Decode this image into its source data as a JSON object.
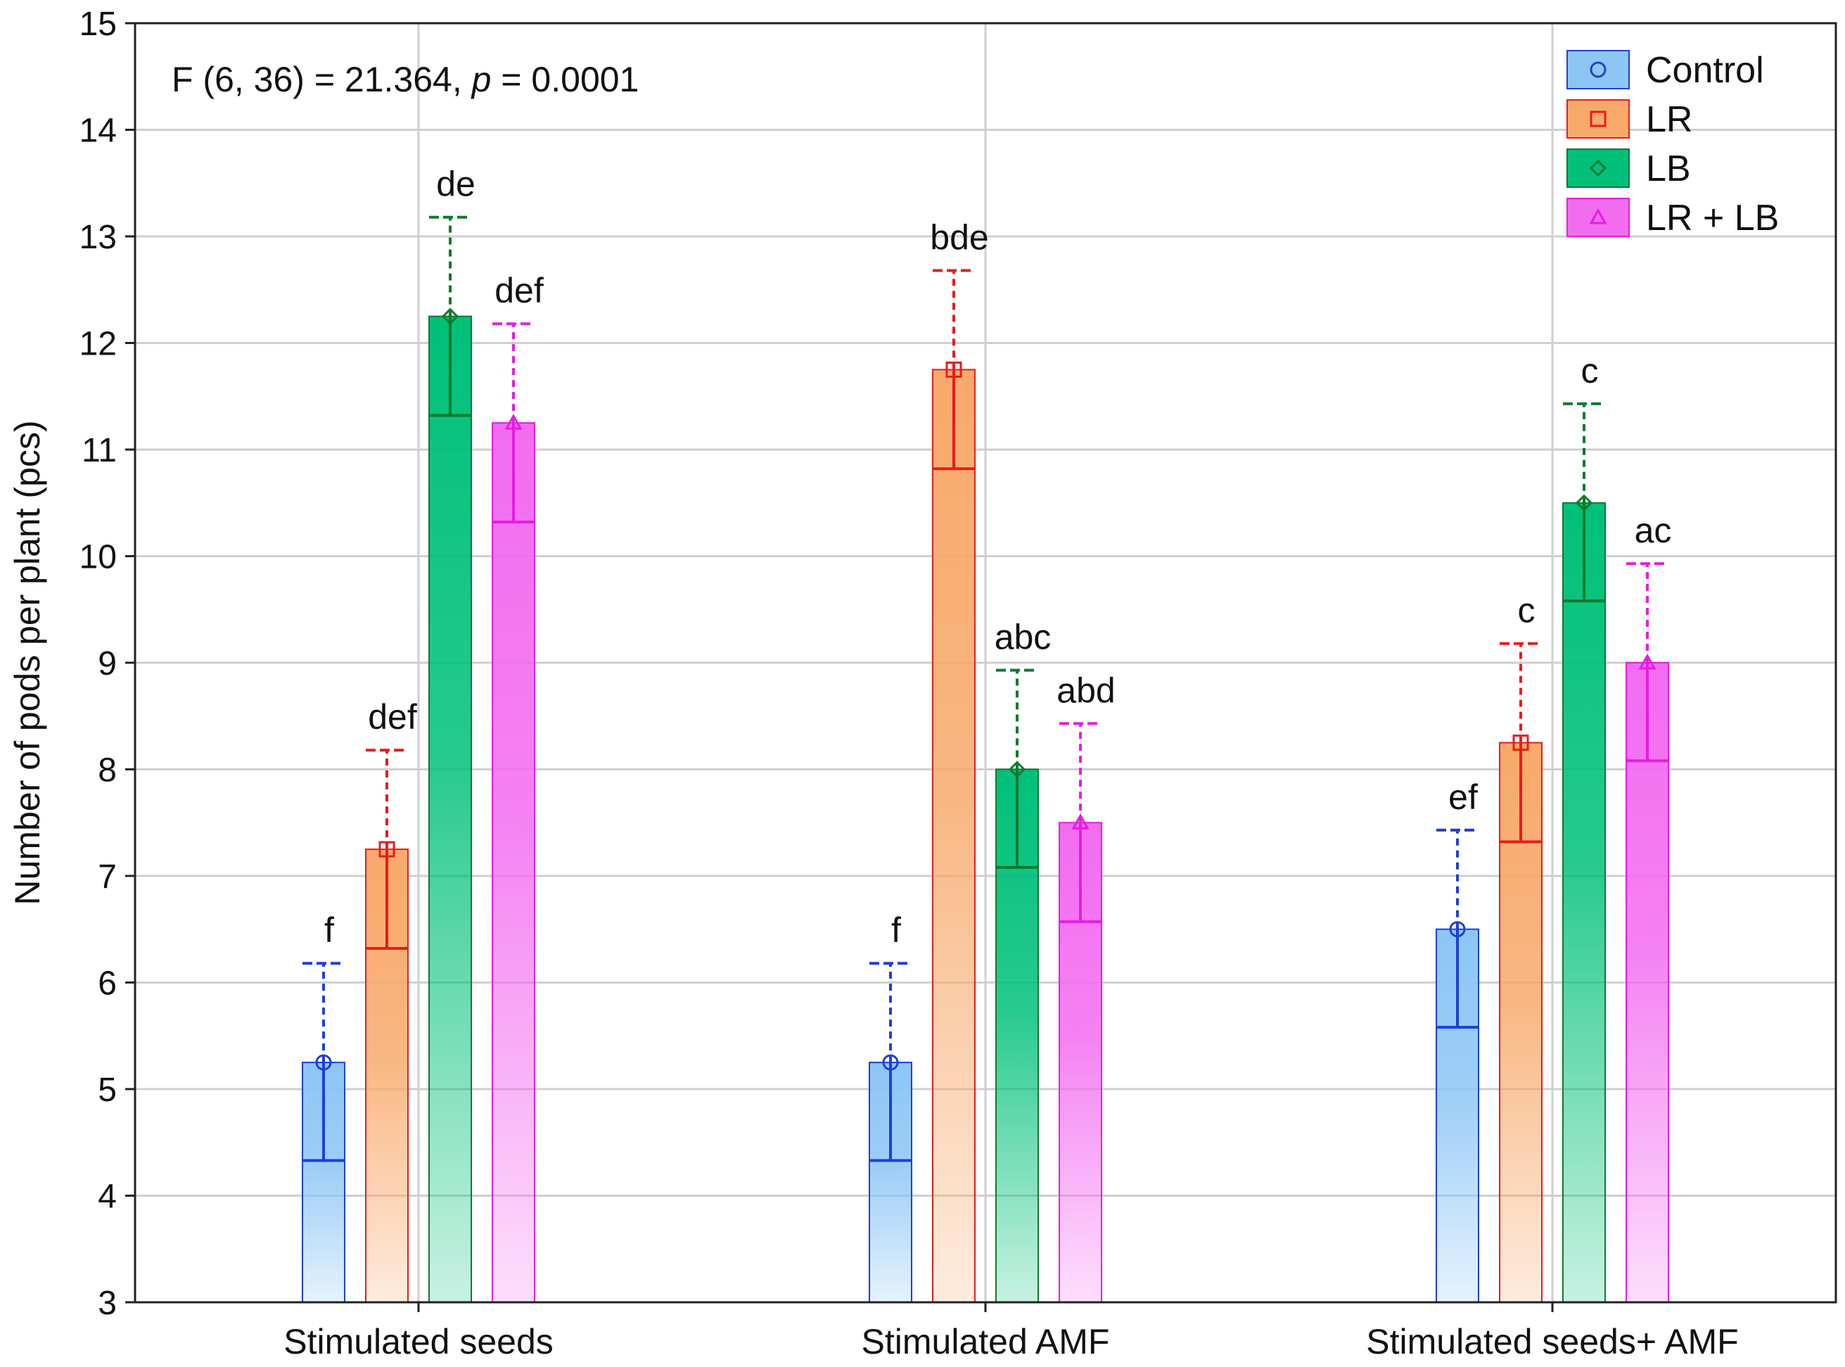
{
  "chart_data": {
    "type": "bar",
    "ylabel": "Number of pods per plant (pcs)",
    "xlabel": "",
    "ylim": [
      3,
      15
    ],
    "yticks": [
      3,
      4,
      5,
      6,
      7,
      8,
      9,
      10,
      11,
      12,
      13,
      14,
      15
    ],
    "grid": true,
    "categories": [
      "Stimulated seeds",
      "Stimulated AMF",
      "Stimulated seeds+ AMF"
    ],
    "annotation": {
      "prefix": "F (6, 36) = 21.364, ",
      "p_symbol": "p",
      "suffix": " = 0.0001"
    },
    "legend_position": "top-right",
    "series": [
      {
        "name": "Control",
        "marker": "circle",
        "color": "#1f3fd8",
        "fill": "#8cc6f5",
        "values": [
          5.25,
          5.25,
          6.5
        ],
        "error_low": [
          4.33,
          4.33,
          5.58
        ],
        "error_high": [
          6.18,
          6.18,
          7.43
        ],
        "letters": [
          "f",
          "f",
          "ef"
        ]
      },
      {
        "name": "LR",
        "marker": "square",
        "color": "#e81c1c",
        "fill": "#f7a96a",
        "values": [
          7.25,
          11.75,
          8.25
        ],
        "error_low": [
          6.32,
          10.82,
          7.32
        ],
        "error_high": [
          8.18,
          12.68,
          9.18
        ],
        "letters": [
          "def",
          "bde",
          "c"
        ]
      },
      {
        "name": "LB",
        "marker": "diamond",
        "color": "#0e7a2a",
        "fill": "#00c07a",
        "values": [
          12.25,
          8.0,
          10.5
        ],
        "error_low": [
          11.32,
          7.08,
          9.58
        ],
        "error_high": [
          13.18,
          8.93,
          11.43
        ],
        "letters": [
          "de",
          "abc",
          "c"
        ]
      },
      {
        "name": "LR + LB",
        "marker": "triangle",
        "color": "#e81ce0",
        "fill": "#f26cf0",
        "values": [
          11.25,
          7.5,
          9.0
        ],
        "error_low": [
          10.32,
          6.57,
          8.08
        ],
        "error_high": [
          12.18,
          8.43,
          9.93
        ],
        "letters": [
          "def",
          "abd",
          "ac"
        ]
      }
    ]
  }
}
